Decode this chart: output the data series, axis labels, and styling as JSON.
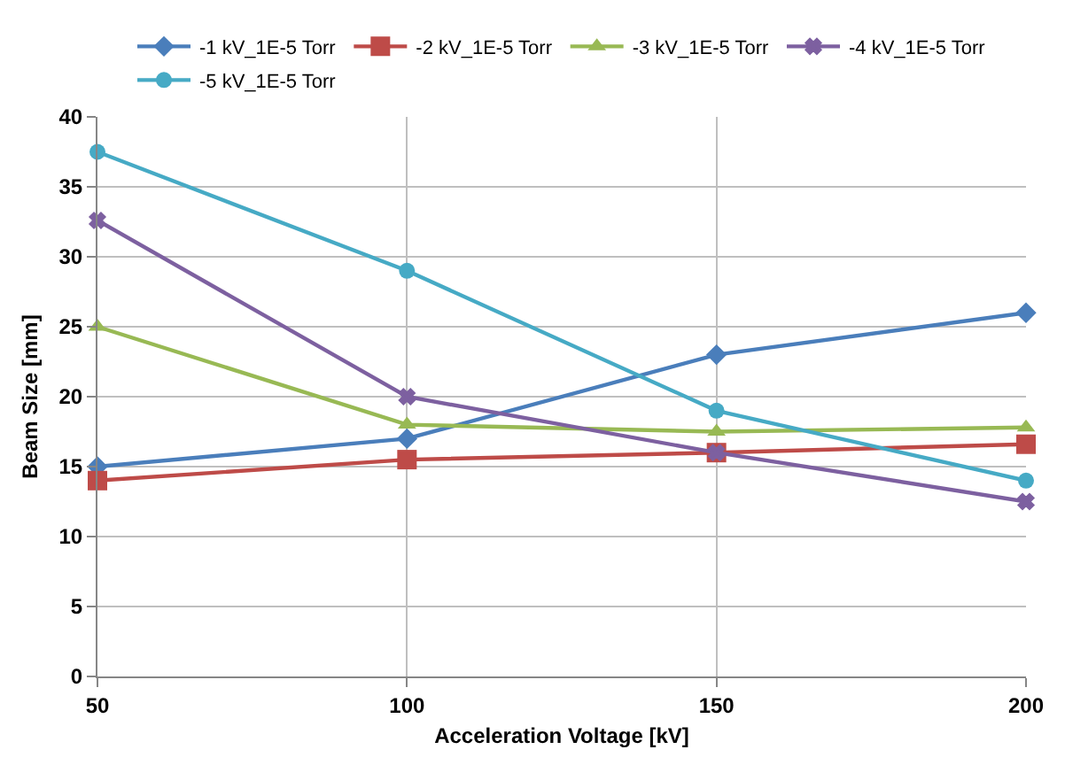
{
  "chart_data": {
    "type": "line",
    "xlabel": "Acceleration Voltage [kV]",
    "ylabel": "Beam Size [mm]",
    "x": [
      50,
      100,
      150,
      200
    ],
    "xlim": [
      50,
      200
    ],
    "xticks": [
      50,
      100,
      150,
      200
    ],
    "ylim": [
      0,
      40
    ],
    "yticks": [
      0,
      5,
      10,
      15,
      20,
      25,
      30,
      35,
      40
    ],
    "grid": true,
    "legend": "top",
    "series": [
      {
        "name": "-1 kV_1E-5 Torr",
        "color": "#4a7ebb",
        "marker": "diamond",
        "values": [
          15,
          17,
          23,
          26
        ]
      },
      {
        "name": "-2 kV_1E-5 Torr",
        "color": "#be4b48",
        "marker": "square",
        "values": [
          14,
          15.5,
          16,
          16.6
        ]
      },
      {
        "name": "-3 kV_1E-5 Torr",
        "color": "#98b954",
        "marker": "triangle",
        "values": [
          25,
          18,
          17.5,
          17.8
        ]
      },
      {
        "name": "-4 kV_1E-5 Torr",
        "color": "#7d60a0",
        "marker": "cross",
        "values": [
          32.6,
          20,
          16,
          12.5
        ]
      },
      {
        "name": "-5 kV_1E-5 Torr",
        "color": "#46aac5",
        "marker": "circle",
        "values": [
          37.5,
          29,
          19,
          14
        ]
      }
    ]
  }
}
